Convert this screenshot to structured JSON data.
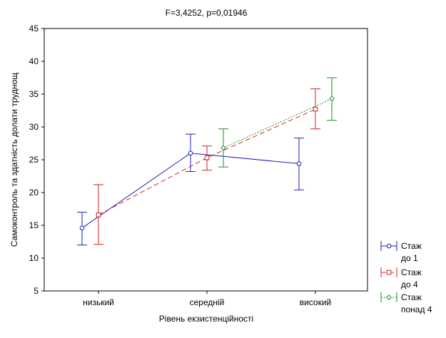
{
  "chart_data": {
    "type": "line",
    "title": "F=3,4252, p=0,01946",
    "xlabel": "Рівень екзистенційності",
    "ylabel": "Самоконтроль та здатність долати труднощ",
    "categories": [
      "низький",
      "середній",
      "високий"
    ],
    "ylim": [
      5,
      45
    ],
    "yticks": [
      "5",
      "10",
      "15",
      "20",
      "25",
      "30",
      "35",
      "40",
      "45"
    ],
    "grid": false,
    "legend_position": "right",
    "series": [
      {
        "name_line1": "Стаж",
        "name_line2": "до 1",
        "color": "#1f1fb4",
        "marker": "circle",
        "dash": "solid",
        "values": [
          14.6,
          26.0,
          24.4
        ],
        "lower": [
          12.0,
          23.2,
          20.4
        ],
        "upper": [
          17.0,
          28.9,
          28.3
        ]
      },
      {
        "name_line1": "Стаж",
        "name_line2": "до 4",
        "color": "#d22020",
        "marker": "square",
        "dash": "dashed",
        "values": [
          16.6,
          25.3,
          32.7
        ],
        "lower": [
          12.1,
          23.4,
          29.7
        ],
        "upper": [
          21.2,
          27.1,
          35.8
        ]
      },
      {
        "name_line1": "Стаж",
        "name_line2": "понад 4",
        "color": "#1f8a1f",
        "marker": "diamond",
        "dash": "dotted",
        "values": [
          null,
          26.8,
          34.3
        ],
        "lower": [
          null,
          23.9,
          31.0
        ],
        "upper": [
          null,
          29.7,
          37.5
        ]
      }
    ]
  }
}
